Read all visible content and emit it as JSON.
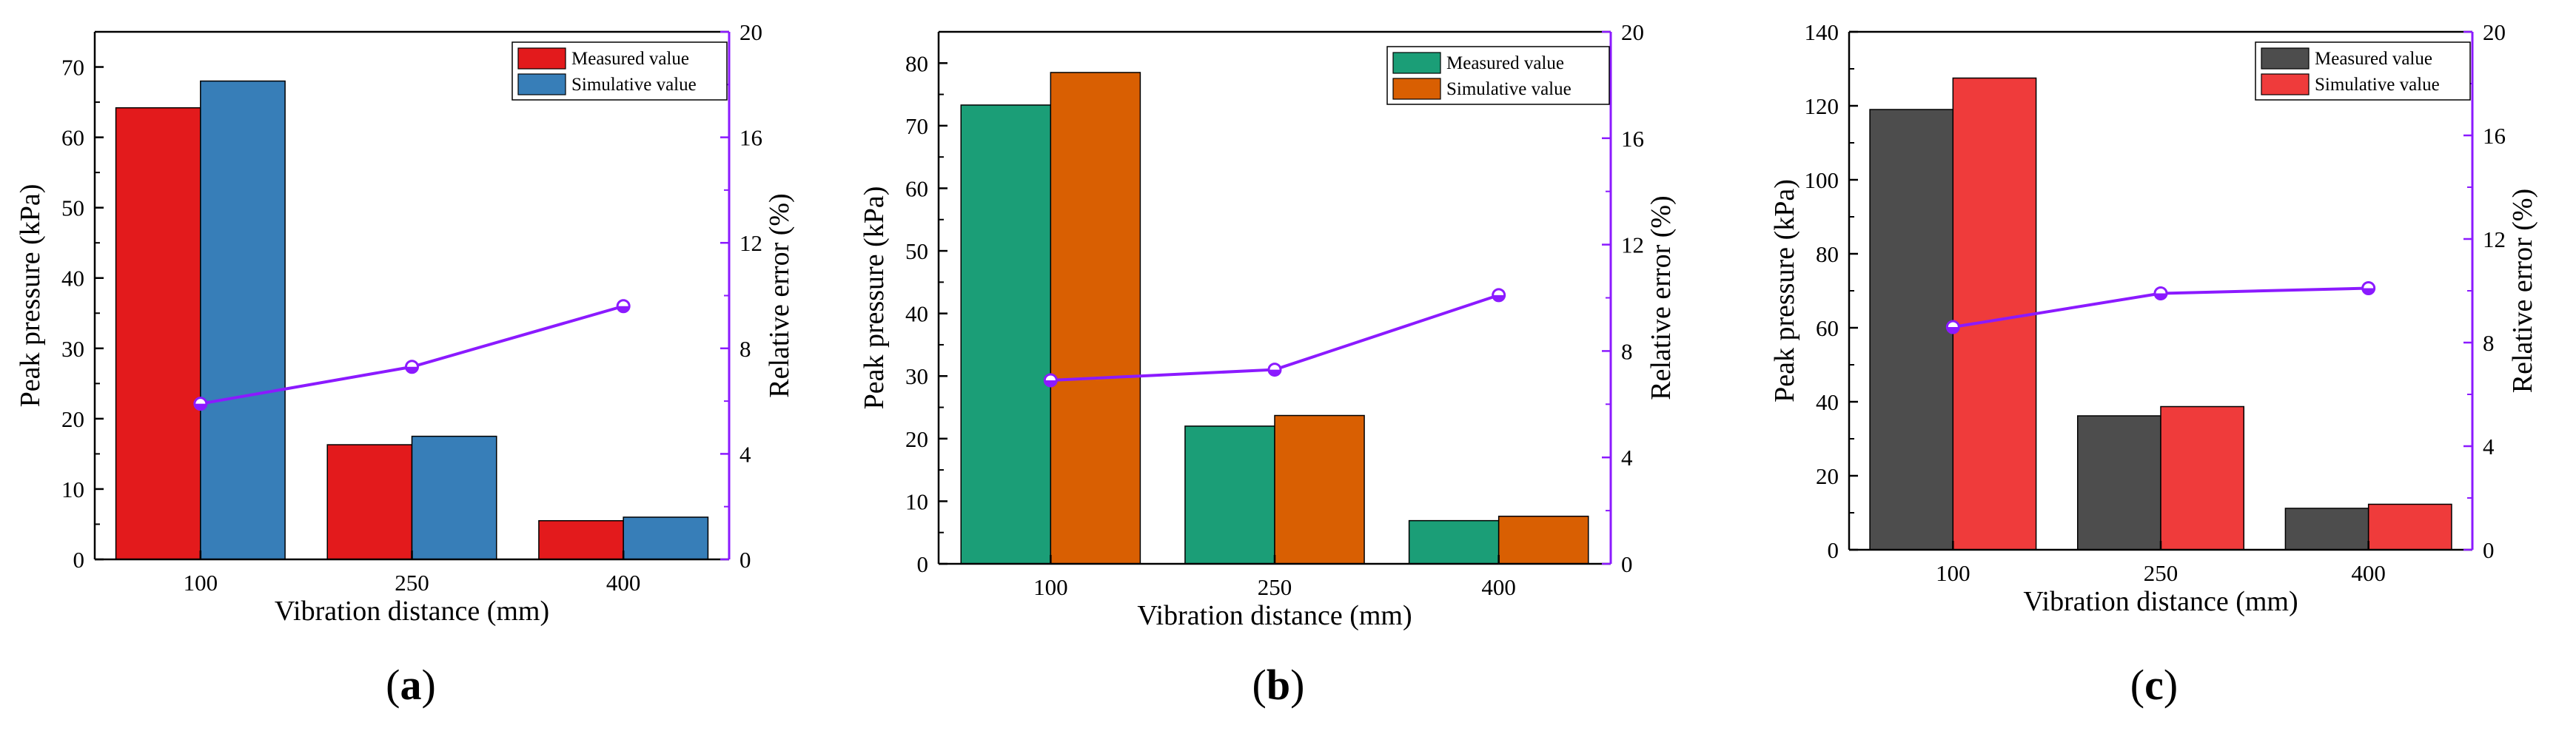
{
  "chart_data": [
    {
      "type": "bar",
      "panel_label": "a",
      "title": "",
      "categories": [
        "100",
        "250",
        "400"
      ],
      "xlabel": "Vibration distance (mm)",
      "ylabel": "Peak pressure (kPa)",
      "ylim": [
        0,
        75
      ],
      "yticks": [
        0,
        10,
        20,
        30,
        40,
        50,
        60,
        70
      ],
      "y2label": "Relative error (%)",
      "y2lim": [
        0,
        20
      ],
      "y2ticks": [
        0,
        4,
        8,
        12,
        16,
        20
      ],
      "legend_position": "top-right",
      "series": [
        {
          "name": "Measured value",
          "type": "bar",
          "color": "#e31a1c",
          "values": [
            64.2,
            16.3,
            5.5
          ]
        },
        {
          "name": "Simulative value",
          "type": "bar",
          "color": "#377eb8",
          "values": [
            68.0,
            17.5,
            6.0
          ]
        },
        {
          "name": "Relative error",
          "type": "line",
          "axis": "right",
          "color": "#8b1aff",
          "values": [
            5.9,
            7.3,
            9.6
          ]
        }
      ]
    },
    {
      "type": "bar",
      "panel_label": "b",
      "title": "",
      "categories": [
        "100",
        "250",
        "400"
      ],
      "xlabel": "Vibration distance (mm)",
      "ylabel": "Peak pressure (kPa)",
      "ylim": [
        0,
        85
      ],
      "yticks": [
        0,
        10,
        20,
        30,
        40,
        50,
        60,
        70,
        80
      ],
      "y2label": "Relative error (%)",
      "y2lim": [
        0,
        20
      ],
      "y2ticks": [
        0,
        4,
        8,
        12,
        16,
        20
      ],
      "legend_position": "top-right",
      "series": [
        {
          "name": "Measured value",
          "type": "bar",
          "color": "#1b9e77",
          "values": [
            73.3,
            22.0,
            6.9
          ]
        },
        {
          "name": "Simulative value",
          "type": "bar",
          "color": "#d95f02",
          "values": [
            78.5,
            23.7,
            7.6
          ]
        },
        {
          "name": "Relative error",
          "type": "line",
          "axis": "right",
          "color": "#8b1aff",
          "values": [
            6.9,
            7.3,
            10.1
          ]
        }
      ]
    },
    {
      "type": "bar",
      "panel_label": "c",
      "title": "",
      "categories": [
        "100",
        "250",
        "400"
      ],
      "xlabel": "Vibration distance (mm)",
      "ylabel": "Peak pressure (kPa)",
      "ylim": [
        0,
        140
      ],
      "yticks": [
        0,
        20,
        40,
        60,
        80,
        100,
        120,
        140
      ],
      "y2label": "Relative error (%)",
      "y2lim": [
        0,
        20
      ],
      "y2ticks": [
        0,
        4,
        8,
        12,
        16,
        20
      ],
      "legend_position": "top-right",
      "series": [
        {
          "name": "Measured value",
          "type": "bar",
          "color": "#4d4d4d",
          "values": [
            119.0,
            36.2,
            11.2
          ]
        },
        {
          "name": "Simulative value",
          "type": "bar",
          "color": "#ef3b3b",
          "values": [
            127.5,
            38.7,
            12.3
          ]
        },
        {
          "name": "Relative error",
          "type": "line",
          "axis": "right",
          "color": "#8b1aff",
          "values": [
            8.6,
            9.9,
            10.1
          ]
        }
      ]
    }
  ]
}
